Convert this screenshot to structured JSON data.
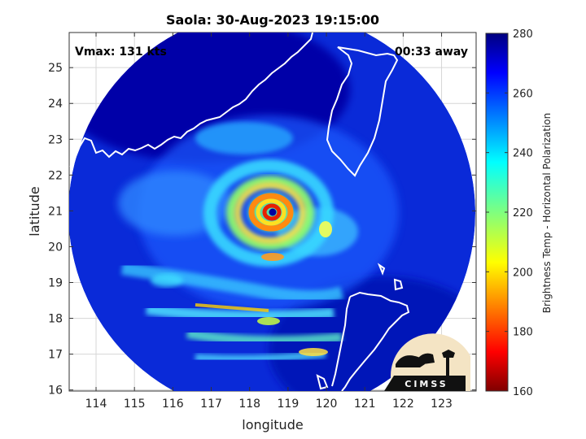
{
  "chart_data": {
    "type": "heatmap",
    "title": "Saola: 30-Aug-2023 19:15:00",
    "xlabel": "longitude",
    "ylabel": "latitude",
    "xlim": [
      113.3,
      123.9
    ],
    "ylim": [
      15.97,
      25.98
    ],
    "xticks": [
      114,
      115,
      116,
      117,
      118,
      119,
      120,
      121,
      122,
      123
    ],
    "yticks": [
      16,
      17,
      18,
      19,
      20,
      21,
      22,
      23,
      24,
      25
    ],
    "grid": true,
    "annotations": {
      "vmax": "Vmax: 131 kts",
      "time_away": "00:33 away"
    },
    "storm_center": {
      "lon": 118.6,
      "lat": 20.95
    },
    "colorbar": {
      "label": "Brightness Temp - Horizontal Polarization",
      "range": [
        160,
        280
      ],
      "ticks": [
        160,
        180,
        200,
        220,
        240,
        260,
        280
      ],
      "colormap": "jet"
    },
    "logo_text": "CIMSS"
  },
  "colors": {
    "background": "#ffffff",
    "coast": "#ffffff",
    "low_temp": "#7f0000",
    "high_temp": "#00007f"
  }
}
